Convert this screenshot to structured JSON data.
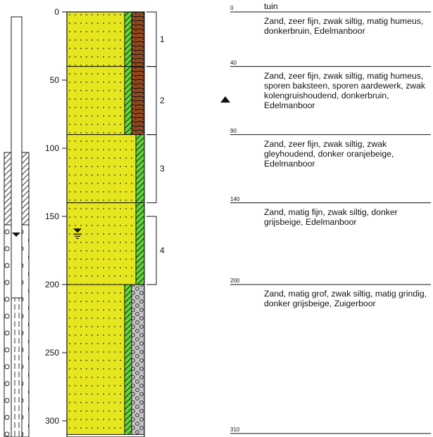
{
  "scale": {
    "ticks": [
      {
        "label": "0",
        "value": 0
      },
      {
        "label": "50",
        "value": 50
      },
      {
        "label": "100",
        "value": 100
      },
      {
        "label": "150",
        "value": 150
      },
      {
        "label": "200",
        "value": 200
      },
      {
        "label": "250",
        "value": 250
      },
      {
        "label": "300",
        "value": 300
      }
    ]
  },
  "surface_label": "tuin",
  "layers": [
    {
      "top": 0,
      "bottom": 40,
      "top_label": "0",
      "description": "Zand, zeer fijn, zwak siltig, matig humeus, donkerbruin, Edelmanboor"
    },
    {
      "top": 40,
      "bottom": 90,
      "top_label": "40",
      "description": "Zand, zeer fijn, zwak siltig, matig humeus, sporen baksteen, sporen aardewerk, zwak kolengruishoudend, donkerbruin, Edelmanboor"
    },
    {
      "top": 90,
      "bottom": 140,
      "top_label": "90",
      "description": "Zand, zeer fijn, zwak siltig, zwak gleyhoudend, donker oranjebeige, Edelmanboor"
    },
    {
      "top": 140,
      "bottom": 200,
      "top_label": "140",
      "description": "Zand, matig fijn, zwak siltig, donker grijsbeige, Edelmanboor"
    },
    {
      "top": 200,
      "bottom": 310,
      "top_label": "200",
      "description": "Zand, matig grof, zwak siltig, matig grindig, donker grijsbeige, Zuigerboor"
    }
  ],
  "bottom_label": "310",
  "samples": [
    {
      "label": "1",
      "top": 0,
      "bottom": 40
    },
    {
      "label": "2",
      "top": 40,
      "bottom": 90
    },
    {
      "label": "3",
      "top": 90,
      "bottom": 140
    },
    {
      "label": "4",
      "top": 150,
      "bottom": 200
    }
  ],
  "groundwater_level": 162,
  "colors": {
    "sand": "#e6e61e",
    "humus": "#9a4a1c",
    "silt": "#5ed83a",
    "gravel": "#c4c4c4"
  }
}
